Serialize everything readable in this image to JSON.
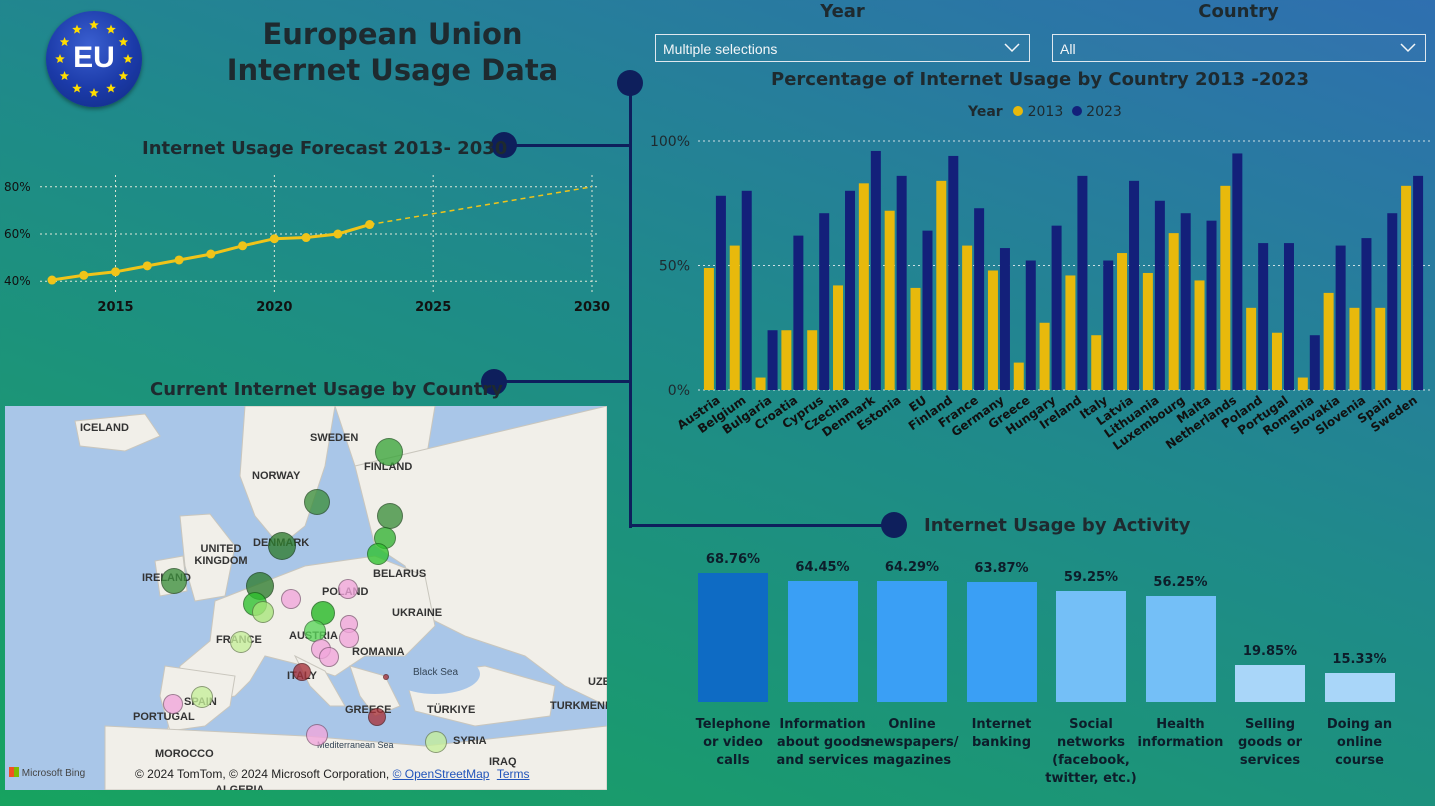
{
  "header": {
    "logo_text": "EU",
    "title_line1": "European Union",
    "title_line2": "Internet Usage Data"
  },
  "filters": {
    "year_label": "Year",
    "year_value": "Multiple selections",
    "country_label": "Country",
    "country_value": "All"
  },
  "colors": {
    "y2013": "#e8b90c",
    "y2023": "#13207a",
    "forecast": "#f0c419",
    "connector": "#0e1f5c"
  },
  "map": {
    "title": "Current Internet Usage by Country",
    "labels": [
      "ICELAND",
      "SWEDEN",
      "FINLAND",
      "NORWAY",
      "DENMARK",
      "UNITED KINGDOM",
      "IRELAND",
      "BELARUS",
      "POLAND",
      "UKRAINE",
      "FRANCE",
      "AUSTRIA",
      "ROMANIA",
      "ITALY",
      "SPAIN",
      "PORTUGAL",
      "GREECE",
      "TÜRKIYE",
      "MOROCCO",
      "SYRIA",
      "IRAQ",
      "TURKMENIS",
      "Black Sea",
      "Mediterranean Sea",
      "ALGERIA",
      "UZB"
    ],
    "attribution": "© 2024 TomTom, © 2024 Microsoft Corporation,",
    "osm_link": "© OpenStreetMap",
    "terms_link": "Terms",
    "bing": "Microsoft Bing"
  },
  "chart_data": [
    {
      "type": "line",
      "title": "Internet Usage Forecast 2013- 2030",
      "x": [
        2013,
        2014,
        2015,
        2016,
        2017,
        2018,
        2019,
        2020,
        2021,
        2022,
        2023
      ],
      "series": [
        {
          "values": [
            40.5,
            42.5,
            44,
            46.5,
            49,
            51.5,
            55,
            58,
            58.5,
            60,
            64
          ]
        }
      ],
      "forecast": {
        "x": [
          2023,
          2030
        ],
        "values": [
          64,
          80
        ]
      },
      "xticks": [
        "2015",
        "2020",
        "2025",
        "2030"
      ],
      "yticks": [
        "40%",
        "60%",
        "80%"
      ],
      "xlim": [
        2013,
        2030
      ],
      "ylim": [
        35,
        85
      ]
    },
    {
      "type": "bar",
      "title": "Percentage of Internet Usage by Country 2013 -2023",
      "legend_title": "Year",
      "categories": [
        "Austria",
        "Belgium",
        "Bulgaria",
        "Croatia",
        "Cyprus",
        "Czechia",
        "Denmark",
        "Estonia",
        "EU",
        "Finland",
        "France",
        "Germany",
        "Greece",
        "Hungary",
        "Ireland",
        "Italy",
        "Latvia",
        "Lithuania",
        "Luxembourg",
        "Malta",
        "Netherlands",
        "Poland",
        "Portugal",
        "Romania",
        "Slovakia",
        "Slovenia",
        "Spain",
        "Sweden"
      ],
      "series": [
        {
          "name": "2013",
          "values": [
            49,
            58,
            5,
            24,
            24,
            42,
            83,
            72,
            41,
            84,
            58,
            48,
            11,
            27,
            46,
            22,
            55,
            47,
            63,
            44,
            82,
            33,
            23,
            5,
            39,
            33,
            33,
            82
          ]
        },
        {
          "name": "2023",
          "values": [
            78,
            80,
            24,
            62,
            71,
            80,
            96,
            86,
            64,
            94,
            73,
            57,
            52,
            66,
            86,
            52,
            84,
            76,
            71,
            68,
            95,
            59,
            59,
            22,
            58,
            61,
            71,
            86
          ]
        }
      ],
      "yticks": [
        "0%",
        "50%",
        "100%"
      ],
      "ylim": [
        0,
        100
      ]
    },
    {
      "type": "bar",
      "title": "Internet Usage by Activity",
      "categories": [
        "Telephone or video calls",
        "Information about goods and services",
        "Online newspapers/ magazines",
        "Internet banking",
        "Social networks (facebook, twitter, etc.)",
        "Health information",
        "Selling goods or services",
        "Doing an online course"
      ],
      "values": [
        68.76,
        64.45,
        64.29,
        63.87,
        59.25,
        56.25,
        19.85,
        15.33
      ],
      "labels": [
        "68.76%",
        "64.45%",
        "64.29%",
        "63.87%",
        "59.25%",
        "56.25%",
        "19.85%",
        "15.33%"
      ],
      "colors": [
        "#0e6bc4",
        "#3a9ff5",
        "#3a9ff5",
        "#3a9ff5",
        "#74bff7",
        "#74bff7",
        "#a9d6f9",
        "#a9d6f9"
      ]
    }
  ]
}
